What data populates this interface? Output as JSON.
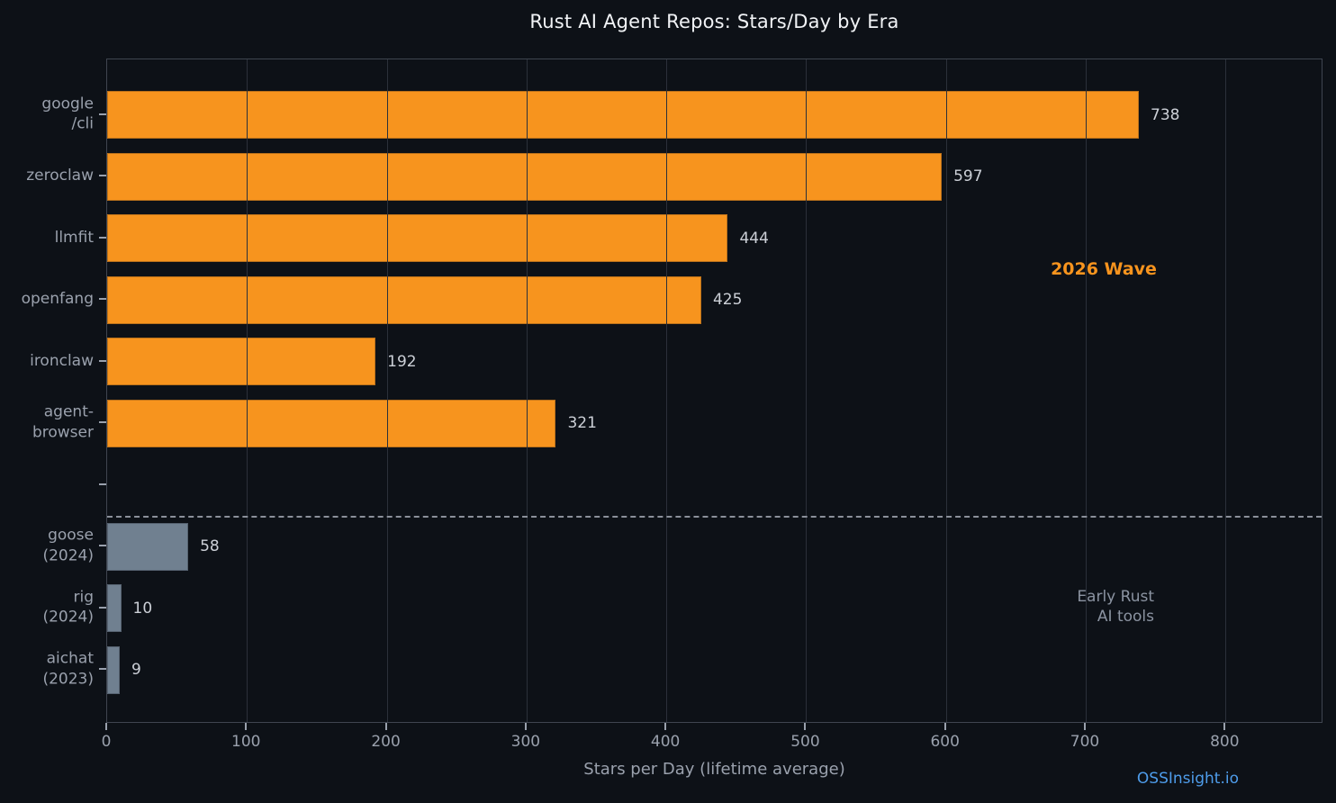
{
  "chart_data": {
    "type": "bar",
    "orientation": "horizontal",
    "title": "Rust AI Agent Repos: Stars/Day by Era",
    "xlabel": "Stars per Day (lifetime average)",
    "xlim": [
      0,
      870
    ],
    "x_ticks": [
      0,
      100,
      200,
      300,
      400,
      500,
      600,
      700,
      800
    ],
    "grid": "vertical",
    "categories": [
      "google/cli",
      "zeroclaw",
      "llmfit",
      "openfang",
      "ironclaw",
      "agent-browser",
      "",
      "goose (2024)",
      "rig (2024)",
      "aichat (2023)"
    ],
    "values": [
      738,
      597,
      444,
      425,
      192,
      321,
      null,
      58,
      10,
      9
    ],
    "bars": [
      {
        "label_lines": [
          "google",
          "/cli"
        ],
        "value": 738,
        "group": "wave2026"
      },
      {
        "label_lines": [
          "zeroclaw"
        ],
        "value": 597,
        "group": "wave2026"
      },
      {
        "label_lines": [
          "llmfit"
        ],
        "value": 444,
        "group": "wave2026"
      },
      {
        "label_lines": [
          "openfang"
        ],
        "value": 425,
        "group": "wave2026"
      },
      {
        "label_lines": [
          "ironclaw"
        ],
        "value": 192,
        "group": "wave2026"
      },
      {
        "label_lines": [
          "agent-",
          "browser"
        ],
        "value": 321,
        "group": "wave2026"
      },
      {
        "label_lines": [],
        "value": null,
        "group": "spacer"
      },
      {
        "label_lines": [
          "goose",
          "(2024)"
        ],
        "value": 58,
        "group": "early"
      },
      {
        "label_lines": [
          "rig",
          "(2024)"
        ],
        "value": 10,
        "group": "early"
      },
      {
        "label_lines": [
          "aichat",
          "(2023)"
        ],
        "value": 9,
        "group": "early"
      }
    ],
    "colors": {
      "wave2026": "#f7941e",
      "early": "#708090",
      "background": "#0d1117",
      "grid": "#2b303a",
      "spine": "#3f4550",
      "tick_text": "#9aa1ad",
      "value_text": "#ccd0d7",
      "title_text": "#f1f3f6",
      "divider": "#8b909a",
      "watermark": "#4e9cea"
    },
    "annotations": {
      "wave": {
        "text": "2026 Wave",
        "color": "#f7941e"
      },
      "early": {
        "lines": [
          "Early Rust",
          "AI tools"
        ],
        "color": "#8b93a1"
      }
    },
    "divider_between_rows": [
      6,
      7
    ],
    "legend": "none",
    "watermark": "OSSInsight.io"
  }
}
